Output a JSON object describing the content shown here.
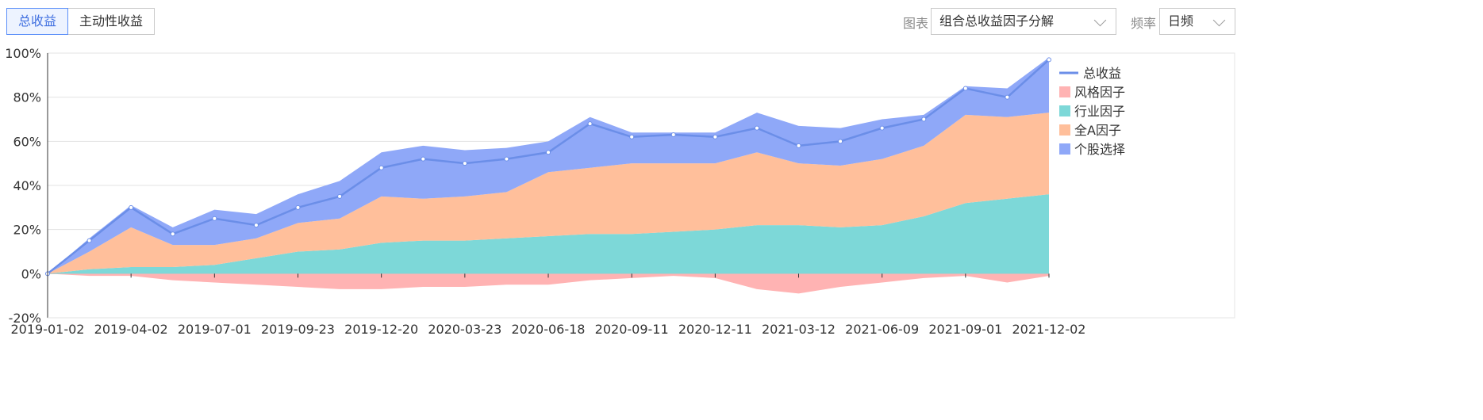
{
  "toolbar": {
    "tabs": [
      {
        "label": "总收益",
        "active": true
      },
      {
        "label": "主动性收益",
        "active": false
      }
    ],
    "chart_label": "图表",
    "chart_select": "组合总收益因子分解",
    "freq_label": "频率",
    "freq_select": "日频"
  },
  "colors": {
    "total": "#6b8ee8",
    "style": "#ffb3b3",
    "industry": "#7dd8d8",
    "market": "#ffbf9b",
    "stock": "#8fa8f8",
    "accent": "#5b8ff9"
  },
  "chart_data": {
    "type": "area",
    "x": [
      "2019-01-02",
      "2019-02-15",
      "2019-04-02",
      "2019-05-15",
      "2019-07-01",
      "2019-08-12",
      "2019-09-23",
      "2019-11-05",
      "2019-12-20",
      "2020-02-05",
      "2020-03-23",
      "2020-05-05",
      "2020-06-18",
      "2020-07-30",
      "2020-09-11",
      "2020-10-27",
      "2020-12-11",
      "2021-01-25",
      "2021-03-12",
      "2021-04-26",
      "2021-06-09",
      "2021-07-21",
      "2021-09-01",
      "2021-10-18",
      "2021-12-02"
    ],
    "xticks": [
      "2019-01-02",
      "2019-04-02",
      "2019-07-01",
      "2019-09-23",
      "2019-12-20",
      "2020-03-23",
      "2020-06-18",
      "2020-09-11",
      "2020-12-11",
      "2021-03-12",
      "2021-06-09",
      "2021-09-01",
      "2021-12-02"
    ],
    "ylim": [
      -20,
      100
    ],
    "yticks": [
      "-20%",
      "0%",
      "20%",
      "40%",
      "60%",
      "80%",
      "100%"
    ],
    "series": [
      {
        "name": "总收益",
        "kind": "line",
        "values": [
          0,
          15,
          30,
          18,
          25,
          22,
          30,
          35,
          48,
          52,
          50,
          52,
          55,
          68,
          62,
          63,
          62,
          66,
          58,
          60,
          66,
          70,
          84,
          80,
          97
        ]
      },
      {
        "name": "风格因子",
        "kind": "area",
        "values": [
          0,
          -1,
          -1,
          -3,
          -4,
          -5,
          -6,
          -7,
          -7,
          -6,
          -6,
          -5,
          -5,
          -3,
          -2,
          -1,
          -2,
          -7,
          -9,
          -6,
          -4,
          -2,
          -1,
          -4,
          -1
        ]
      },
      {
        "name": "行业因子",
        "kind": "area",
        "values": [
          0,
          2,
          3,
          3,
          4,
          7,
          10,
          11,
          14,
          15,
          15,
          16,
          17,
          18,
          18,
          19,
          20,
          22,
          22,
          21,
          22,
          26,
          32,
          34,
          36
        ]
      },
      {
        "name": "全A因子",
        "kind": "area",
        "values": [
          0,
          8,
          18,
          10,
          9,
          9,
          13,
          14,
          21,
          19,
          20,
          21,
          29,
          30,
          32,
          31,
          30,
          33,
          28,
          28,
          30,
          32,
          40,
          37,
          37
        ]
      },
      {
        "name": "个股选择",
        "kind": "area",
        "values": [
          0,
          6,
          10,
          8,
          16,
          11,
          13,
          17,
          20,
          24,
          21,
          20,
          14,
          23,
          14,
          14,
          14,
          18,
          17,
          17,
          18,
          14,
          13,
          13,
          25
        ]
      }
    ],
    "grid": true,
    "legend_position": "right"
  }
}
